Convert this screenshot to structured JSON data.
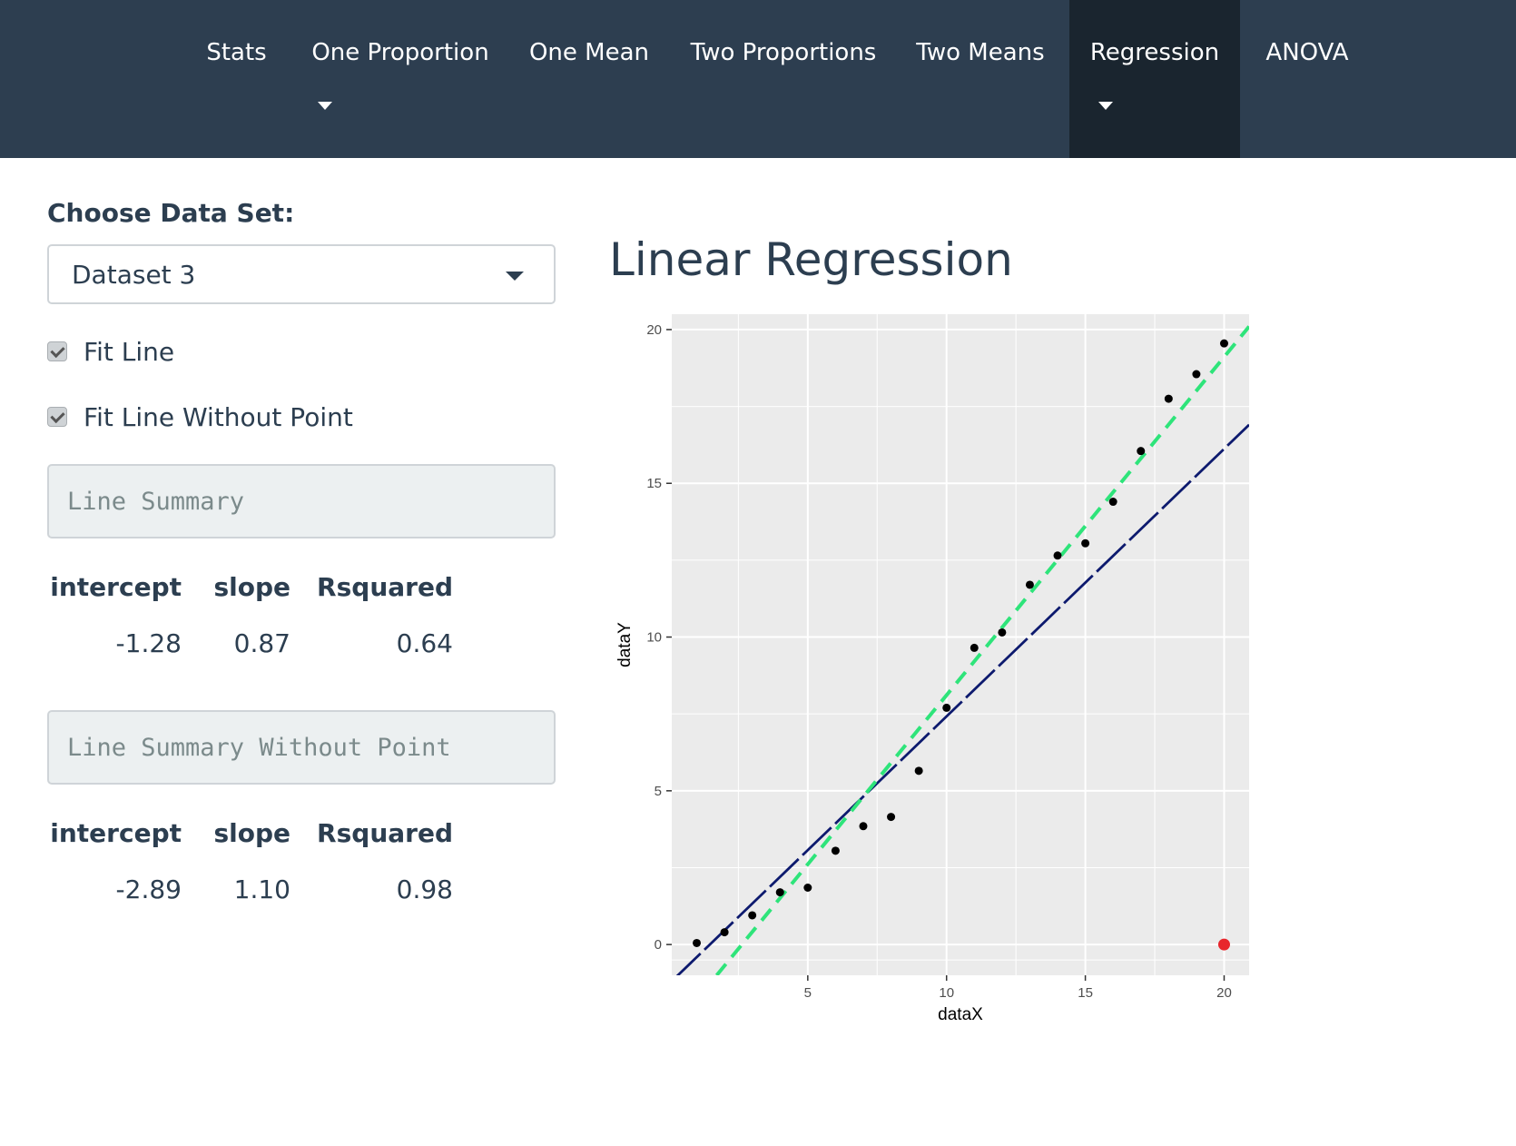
{
  "nav": {
    "items": [
      {
        "label": "Stats"
      },
      {
        "label": "One Proportion"
      },
      {
        "label": "One Mean"
      },
      {
        "label": "Two Proportions"
      },
      {
        "label": "Two Means"
      },
      {
        "label": "Regression"
      },
      {
        "label": "ANOVA"
      }
    ],
    "active": "Regression",
    "active_bg": "#1a252f",
    "bg": "#2d3e50"
  },
  "sidebar": {
    "dataset_label": "Choose Data Set:",
    "dataset_selected": "Dataset 3",
    "checkbox_fit_line": {
      "label": "Fit Line",
      "checked": true
    },
    "checkbox_fit_without_point": {
      "label": "Fit Line Without Point",
      "checked": true
    },
    "summary_box_label": "Line Summary",
    "summary": {
      "headers": [
        "intercept",
        "slope",
        "Rsquared"
      ],
      "values": [
        "-1.28",
        "0.87",
        "0.64"
      ]
    },
    "summary_without_box_label": "Line Summary Without Point",
    "summary_without": {
      "headers": [
        "intercept",
        "slope",
        "Rsquared"
      ],
      "values": [
        "-2.89",
        "1.10",
        "0.98"
      ]
    }
  },
  "main": {
    "title": "Linear Regression"
  },
  "chart_data": {
    "type": "scatter",
    "xlabel": "dataX",
    "ylabel": "dataY",
    "xlim": [
      0.1,
      20.9
    ],
    "ylim": [
      -1.0,
      20.5
    ],
    "x_ticks": [
      5,
      10,
      15,
      20
    ],
    "y_ticks": [
      0,
      5,
      10,
      15,
      20
    ],
    "grid": true,
    "panel_bg": "#ebebeb",
    "points": [
      {
        "x": 1,
        "y": 0.05
      },
      {
        "x": 2,
        "y": 0.4
      },
      {
        "x": 3,
        "y": 0.95
      },
      {
        "x": 4,
        "y": 1.7
      },
      {
        "x": 5,
        "y": 1.85
      },
      {
        "x": 6,
        "y": 3.05
      },
      {
        "x": 7,
        "y": 3.85
      },
      {
        "x": 8,
        "y": 4.15
      },
      {
        "x": 9,
        "y": 5.65
      },
      {
        "x": 10,
        "y": 7.7
      },
      {
        "x": 11,
        "y": 9.65
      },
      {
        "x": 12,
        "y": 10.15
      },
      {
        "x": 13,
        "y": 11.7
      },
      {
        "x": 14,
        "y": 12.65
      },
      {
        "x": 15,
        "y": 13.05
      },
      {
        "x": 16,
        "y": 14.4
      },
      {
        "x": 17,
        "y": 16.05
      },
      {
        "x": 18,
        "y": 17.75
      },
      {
        "x": 19,
        "y": 18.55
      },
      {
        "x": 20,
        "y": 19.55
      }
    ],
    "outlier": {
      "x": 20,
      "y": 0,
      "color": "#e8262c"
    },
    "fit_line": {
      "intercept": -1.28,
      "slope": 0.87,
      "color": "#0d1a6e",
      "style": "longdash"
    },
    "fit_line_without_point": {
      "intercept": -2.89,
      "slope": 1.1,
      "color": "#2ee47a",
      "style": "dashed"
    }
  }
}
